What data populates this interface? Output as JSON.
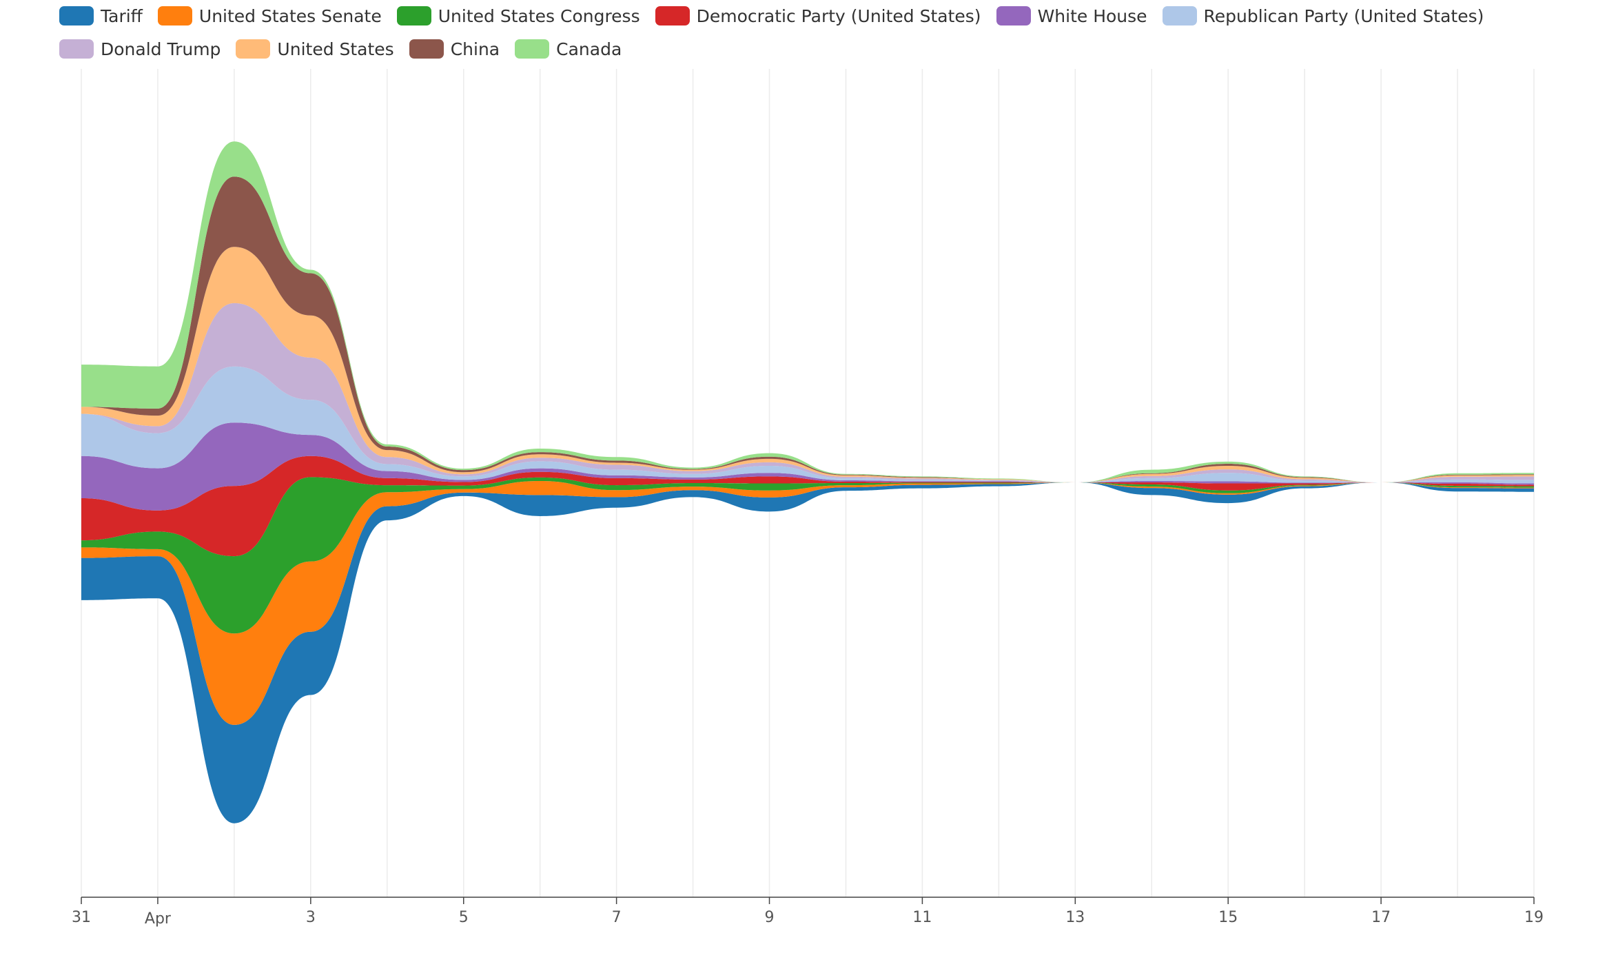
{
  "legend": [
    {
      "name": "Tariff",
      "color": "#1f77b4"
    },
    {
      "name": "United States Senate",
      "color": "#ff7f0e"
    },
    {
      "name": "United States Congress",
      "color": "#2ca02c"
    },
    {
      "name": "Democratic Party (United States)",
      "color": "#d62728"
    },
    {
      "name": "White House",
      "color": "#9467bd"
    },
    {
      "name": "Republican Party (United States)",
      "color": "#aec7e8"
    },
    {
      "name": "Donald Trump",
      "color": "#c5b0d5"
    },
    {
      "name": "United States",
      "color": "#ffbb78"
    },
    {
      "name": "China",
      "color": "#8c564b"
    },
    {
      "name": "Canada",
      "color": "#98df8a"
    }
  ],
  "chart_data": {
    "type": "area",
    "layout": "streamgraph",
    "legend_position": "top",
    "grid": true,
    "x": [
      "Mar 31",
      "Apr 1",
      "Apr 2",
      "Apr 3",
      "Apr 4",
      "Apr 5",
      "Apr 6",
      "Apr 7",
      "Apr 8",
      "Apr 9",
      "Apr 10",
      "Apr 11",
      "Apr 12",
      "Apr 13",
      "Apr 14",
      "Apr 15",
      "Apr 16",
      "Apr 17",
      "Apr 18",
      "Apr 19"
    ],
    "x_tick_labels": [
      "31",
      "Apr",
      "3",
      "5",
      "7",
      "9",
      "11",
      "13",
      "15",
      "17",
      "19"
    ],
    "series": [
      {
        "name": "Tariff",
        "color": "#1f77b4",
        "values": [
          6,
          6,
          14,
          9,
          2,
          0.5,
          3,
          1.5,
          1,
          2,
          0.5,
          0.5,
          0.3,
          0,
          1,
          1.2,
          0.3,
          0,
          0.5,
          0.5
        ]
      },
      {
        "name": "United States Senate",
        "color": "#ff7f0e",
        "values": [
          1.5,
          1,
          13,
          10,
          2,
          0.5,
          2,
          1,
          0.5,
          1,
          0.3,
          0.2,
          0.1,
          0,
          0.2,
          0.2,
          0.1,
          0,
          0.1,
          0.1
        ]
      },
      {
        "name": "United States Congress",
        "color": "#2ca02c",
        "values": [
          1,
          2.5,
          11,
          12,
          1,
          0.5,
          0.5,
          0.7,
          0.5,
          1,
          0.3,
          0.1,
          0.1,
          0,
          0.3,
          0.4,
          0.1,
          0,
          0.2,
          0.2
        ]
      },
      {
        "name": "Democratic Party (United States)",
        "color": "#d62728",
        "values": [
          6,
          3,
          10,
          3,
          1,
          0.5,
          0.8,
          1,
          0.5,
          1,
          0.2,
          0.1,
          0.1,
          0,
          0.3,
          1,
          0.2,
          0,
          0.3,
          0.2
        ]
      },
      {
        "name": "White House",
        "color": "#9467bd",
        "values": [
          6,
          6,
          9,
          3,
          1,
          0.3,
          0.5,
          0.4,
          0.3,
          0.5,
          0.2,
          0.1,
          0.1,
          0,
          0.2,
          0.3,
          0.1,
          0,
          0.2,
          0.2
        ]
      },
      {
        "name": "Republican Party (United States)",
        "color": "#aec7e8",
        "values": [
          6,
          5,
          8,
          5,
          1,
          0.5,
          1,
          0.8,
          0.5,
          1,
          0.3,
          0.2,
          0.1,
          0,
          0.4,
          1.2,
          0.3,
          0,
          0.4,
          0.5
        ]
      },
      {
        "name": "Donald Trump",
        "color": "#c5b0d5",
        "values": [
          0,
          1,
          9,
          6,
          1,
          0.3,
          0.5,
          0.7,
          0.4,
          0.5,
          0.2,
          0.2,
          0.1,
          0,
          0.3,
          0.5,
          0.2,
          0,
          0.4,
          0.5
        ]
      },
      {
        "name": "United States",
        "color": "#ffbb78",
        "values": [
          1,
          1.5,
          8,
          6,
          1,
          0.3,
          0.5,
          0.3,
          0.2,
          0.5,
          0.2,
          0.1,
          0.1,
          0,
          0.3,
          0.5,
          0.2,
          0,
          0.2,
          0.2
        ]
      },
      {
        "name": "China",
        "color": "#8c564b",
        "values": [
          0,
          1,
          10,
          6,
          0.5,
          0.3,
          0.3,
          0.3,
          0.1,
          0.3,
          0.1,
          0.1,
          0,
          0,
          0.1,
          0.3,
          0.1,
          0,
          0.1,
          0.1
        ]
      },
      {
        "name": "Canada",
        "color": "#98df8a",
        "values": [
          6,
          6,
          5,
          0.5,
          0.3,
          0.2,
          0.5,
          0.5,
          0.2,
          0.5,
          0.1,
          0.1,
          0.1,
          0,
          0.5,
          0.3,
          0.1,
          0,
          0.2,
          0.2
        ]
      }
    ]
  }
}
